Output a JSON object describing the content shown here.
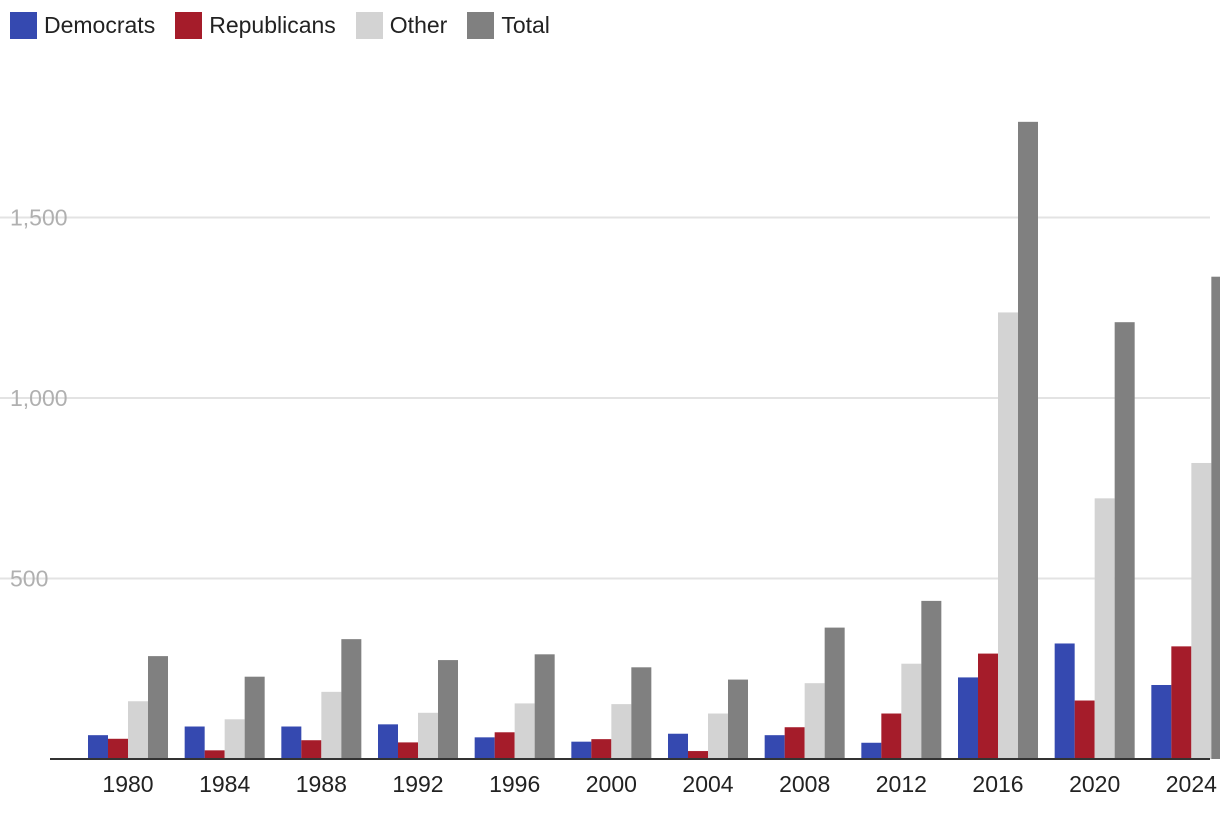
{
  "chart_data": {
    "type": "bar",
    "title": "",
    "xlabel": "",
    "ylabel": "",
    "categories": [
      "1980",
      "1984",
      "1988",
      "1992",
      "1996",
      "2000",
      "2004",
      "2008",
      "2012",
      "2016",
      "2020",
      "2024"
    ],
    "series": [
      {
        "name": "Democrats",
        "color": "#3549b0",
        "values": [
          66,
          90,
          90,
          96,
          60,
          48,
          70,
          66,
          45,
          226,
          320,
          205
        ]
      },
      {
        "name": "Republicans",
        "color": "#a51c2a",
        "values": [
          56,
          24,
          52,
          46,
          74,
          55,
          22,
          88,
          126,
          292,
          162,
          312
        ]
      },
      {
        "name": "Other",
        "color": "#d3d3d3",
        "values": [
          160,
          110,
          186,
          128,
          154,
          152,
          126,
          210,
          264,
          1237,
          722,
          820
        ]
      },
      {
        "name": "Total",
        "color": "#808080",
        "values": [
          285,
          228,
          332,
          274,
          290,
          254,
          220,
          364,
          438,
          1765,
          1210,
          1336
        ]
      }
    ],
    "yticks": [
      {
        "value": 500,
        "label": "500"
      },
      {
        "value": 1000,
        "label": "1,000"
      },
      {
        "value": 1500,
        "label": "1,500"
      }
    ],
    "ylim": [
      0,
      1800
    ],
    "grid": true,
    "legend_position": "top-left"
  }
}
